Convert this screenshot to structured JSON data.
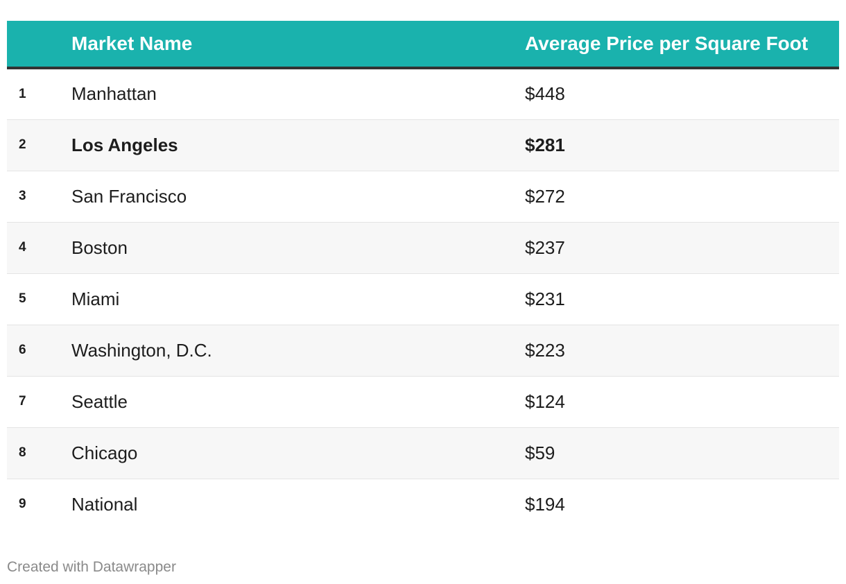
{
  "table": {
    "headers": {
      "rank": "",
      "name": "Market Name",
      "price": "Average Price per Square Foot"
    },
    "rows": [
      {
        "rank": "1",
        "name": "Manhattan",
        "price": "$448"
      },
      {
        "rank": "2",
        "name": "Los Angeles",
        "price": "$281"
      },
      {
        "rank": "3",
        "name": "San Francisco",
        "price": "$272"
      },
      {
        "rank": "4",
        "name": "Boston",
        "price": "$237"
      },
      {
        "rank": "5",
        "name": "Miami",
        "price": "$231"
      },
      {
        "rank": "6",
        "name": "Washington, D.C.",
        "price": "$223"
      },
      {
        "rank": "7",
        "name": "Seattle",
        "price": "$124"
      },
      {
        "rank": "8",
        "name": "Chicago",
        "price": "$59"
      },
      {
        "rank": "9",
        "name": "National",
        "price": "$194"
      }
    ],
    "highlighted_row": "Los Angeles"
  },
  "chart_data": {
    "type": "table",
    "columns": [
      "",
      "Market Name",
      "Average Price per Square Foot"
    ],
    "categories": [
      "Manhattan",
      "Los Angeles",
      "San Francisco",
      "Boston",
      "Miami",
      "Washington, D.C.",
      "Seattle",
      "Chicago",
      "National"
    ],
    "values": [
      448,
      281,
      272,
      237,
      231,
      223,
      124,
      59,
      194
    ],
    "unit": "$"
  },
  "colors": {
    "header_background": "#1ab2ad",
    "header_text": "#ffffff",
    "header_rule": "#333333",
    "alt_row_background": "#f7f7f7",
    "footer_text": "#8a8a8a"
  },
  "footer": {
    "credit": "Created with Datawrapper"
  }
}
